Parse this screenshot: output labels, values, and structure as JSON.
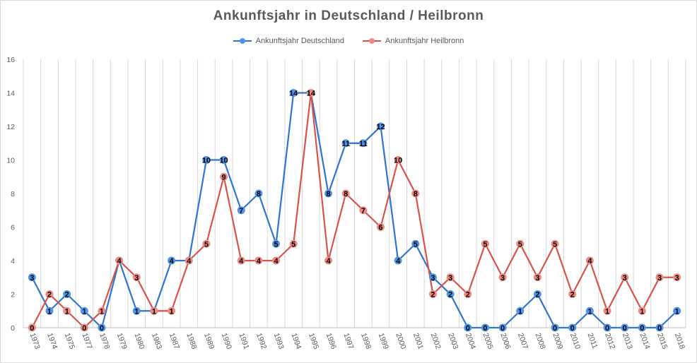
{
  "chart_data": {
    "type": "line",
    "title": "Ankunftsjahr in Deutschland / Heilbronn",
    "xlabel": "",
    "ylabel": "",
    "ylim": [
      0,
      16
    ],
    "yticks": [
      0,
      2,
      4,
      6,
      8,
      10,
      12,
      14,
      16
    ],
    "grid": "vertical",
    "legend_position": "top",
    "categories": [
      "1973",
      "1974",
      "1975",
      "1977",
      "1978",
      "1979",
      "1980",
      "1983",
      "1987",
      "1988",
      "1989",
      "1990",
      "1991",
      "1992",
      "1993",
      "1994",
      "1995",
      "1996",
      "1997",
      "1998",
      "1999",
      "2000",
      "2001",
      "2002",
      "2003",
      "2004",
      "2005",
      "2006",
      "2007",
      "2008",
      "2009",
      "2010",
      "2011",
      "2012",
      "2013",
      "2014",
      "2015",
      "2018"
    ],
    "series": [
      {
        "name": "Ankunftsjahr Deutschland",
        "color": "#2e75d3",
        "marker_color": "#4e95e8",
        "values": [
          3,
          1,
          2,
          1,
          0,
          4,
          1,
          1,
          4,
          4,
          10,
          10,
          7,
          8,
          5,
          14,
          14,
          8,
          11,
          11,
          12,
          4,
          5,
          3,
          2,
          0,
          0,
          0,
          1,
          2,
          0,
          0,
          1,
          0,
          0,
          0,
          0,
          1
        ]
      },
      {
        "name": "Ankunftsjahr Heilbronn",
        "color": "#d9534a",
        "marker_color": "#ee8a82",
        "values": [
          0,
          2,
          1,
          0,
          1,
          4,
          3,
          1,
          1,
          4,
          5,
          9,
          4,
          4,
          4,
          5,
          14,
          4,
          8,
          7,
          6,
          10,
          8,
          2,
          3,
          2,
          5,
          3,
          5,
          3,
          5,
          2,
          4,
          1,
          3,
          1,
          3,
          3
        ]
      }
    ]
  }
}
